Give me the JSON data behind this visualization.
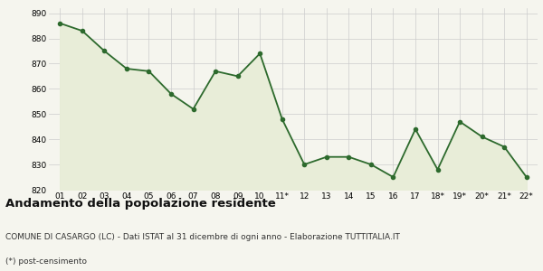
{
  "x_labels": [
    "01",
    "02",
    "03",
    "04",
    "05",
    "06",
    "07",
    "08",
    "09",
    "10",
    "11*",
    "12",
    "13",
    "14",
    "15",
    "16",
    "17",
    "18*",
    "19*",
    "20*",
    "21*",
    "22*"
  ],
  "y_values": [
    886,
    883,
    875,
    868,
    867,
    858,
    852,
    867,
    865,
    874,
    848,
    830,
    833,
    833,
    830,
    825,
    844,
    828,
    847,
    841,
    837,
    825
  ],
  "line_color": "#2d6a2d",
  "fill_color": "#e8edd8",
  "marker": "o",
  "marker_size": 3,
  "line_width": 1.3,
  "ylim": [
    820,
    892
  ],
  "yticks": [
    820,
    830,
    840,
    850,
    860,
    870,
    880,
    890
  ],
  "title": "Andamento della popolazione residente",
  "subtitle": "COMUNE DI CASARGO (LC) - Dati ISTAT al 31 dicembre di ogni anno - Elaborazione TUTTITALIA.IT",
  "footnote": "(*) post-censimento",
  "title_fontsize": 9.5,
  "subtitle_fontsize": 6.5,
  "footnote_fontsize": 6.5,
  "tick_fontsize": 6.5,
  "grid_color": "#cccccc",
  "background_color": "#f5f5ee"
}
